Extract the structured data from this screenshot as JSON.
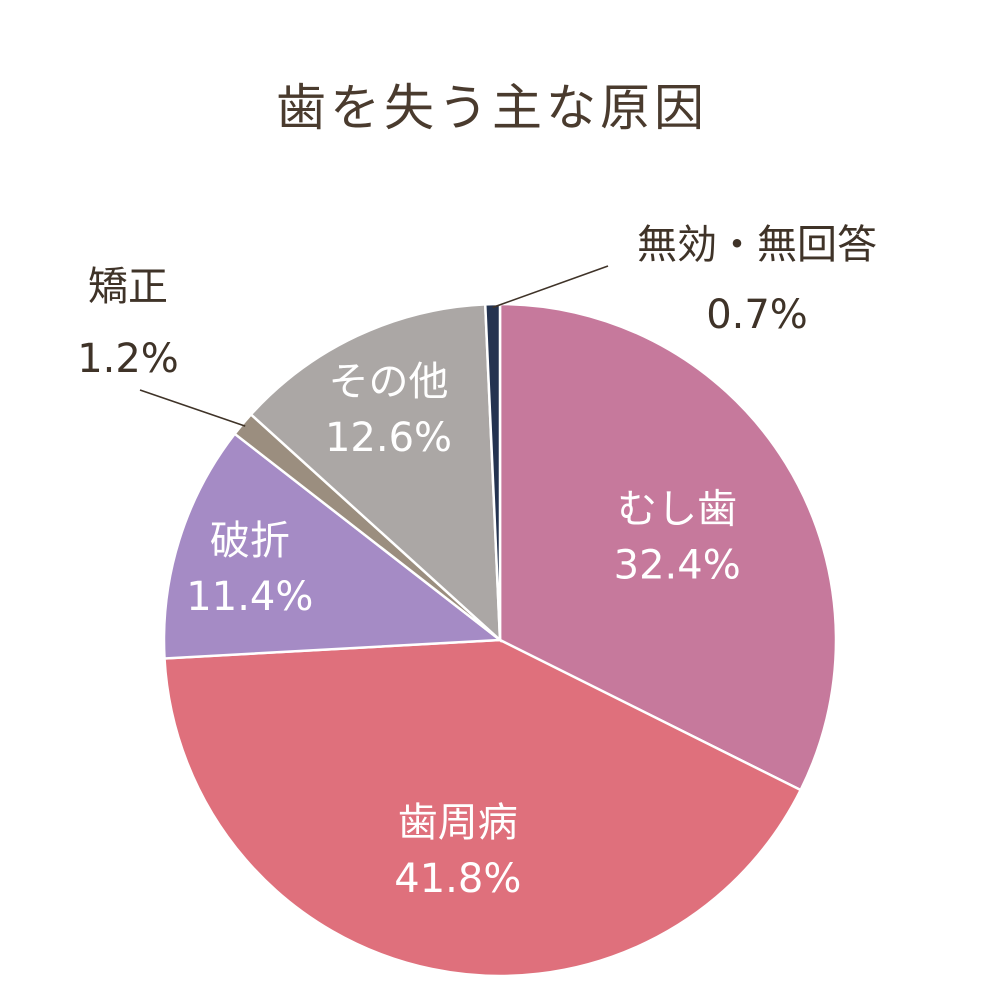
{
  "chart_data": {
    "type": "pie",
    "title": "歯を失う主な原因",
    "slices": [
      {
        "label": "むし歯",
        "value": 32.4,
        "value_label": "32.4%",
        "color": "#c6799c",
        "label_pos": "inside"
      },
      {
        "label": "歯周病",
        "value": 41.8,
        "value_label": "41.8%",
        "color": "#df707c",
        "label_pos": "inside"
      },
      {
        "label": "破折",
        "value": 11.4,
        "value_label": "11.4%",
        "color": "#a58bc5",
        "label_pos": "inside"
      },
      {
        "label": "矯正",
        "value": 1.2,
        "value_label": "1.2%",
        "color": "#9b8e7f",
        "label_pos": "outside-left"
      },
      {
        "label": "その他",
        "value": 12.6,
        "value_label": "12.6%",
        "color": "#aba7a5",
        "label_pos": "inside"
      },
      {
        "label": "無効・無回答",
        "value": 0.7,
        "value_label": "0.7%",
        "color": "#243350",
        "label_pos": "outside-right"
      }
    ],
    "start": "12 o'clock",
    "direction": "clockwise"
  }
}
